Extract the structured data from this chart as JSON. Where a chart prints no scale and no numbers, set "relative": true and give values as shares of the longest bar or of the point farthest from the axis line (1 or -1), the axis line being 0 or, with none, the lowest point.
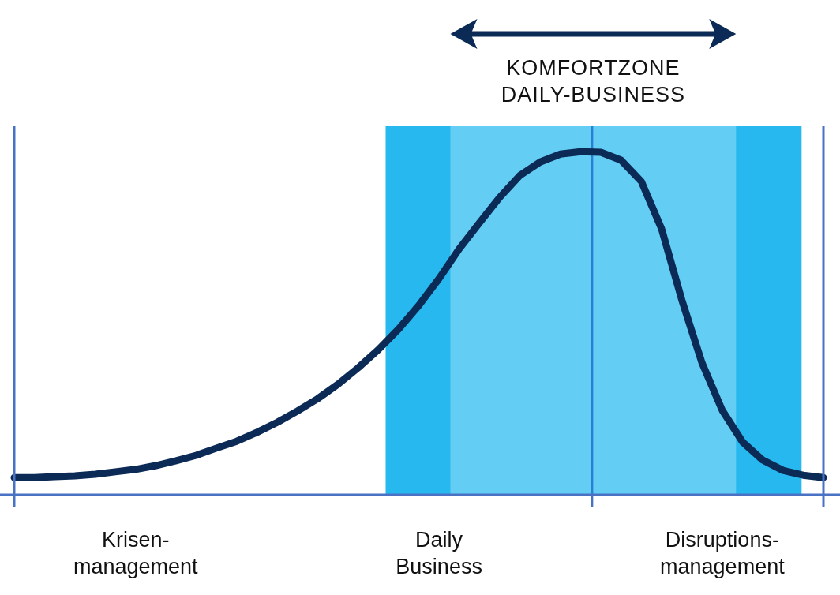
{
  "chart_data": {
    "type": "line",
    "relative": true,
    "categories": [
      null,
      null,
      null,
      null,
      null,
      null,
      "Krisen-management",
      null,
      null,
      null,
      null,
      null,
      null,
      null,
      null,
      null,
      null,
      null,
      null,
      null,
      null,
      "Daily Business",
      null,
      null,
      null,
      null,
      null,
      null,
      null,
      null,
      null,
      null,
      null,
      null,
      null,
      "Disruptions-management",
      null,
      null,
      null,
      null,
      null
    ],
    "series": [
      {
        "color": "#0b2a55",
        "values": [
          0.05,
          0.05,
          0.053,
          0.055,
          0.06,
          0.067,
          0.074,
          0.085,
          0.099,
          0.115,
          0.136,
          0.156,
          0.182,
          0.211,
          0.244,
          0.28,
          0.322,
          0.37,
          0.423,
          0.483,
          0.552,
          0.63,
          0.717,
          0.793,
          0.867,
          0.931,
          0.97,
          0.993,
          1.0,
          0.998,
          0.975,
          0.913,
          0.775,
          0.568,
          0.384,
          0.246,
          0.154,
          0.101,
          0.071,
          0.057,
          0.05
        ]
      }
    ],
    "annotations": [
      "KOMFORTZONE DAILY-BUSINESS"
    ],
    "marker": "none",
    "line_style": "solid"
  }
}
